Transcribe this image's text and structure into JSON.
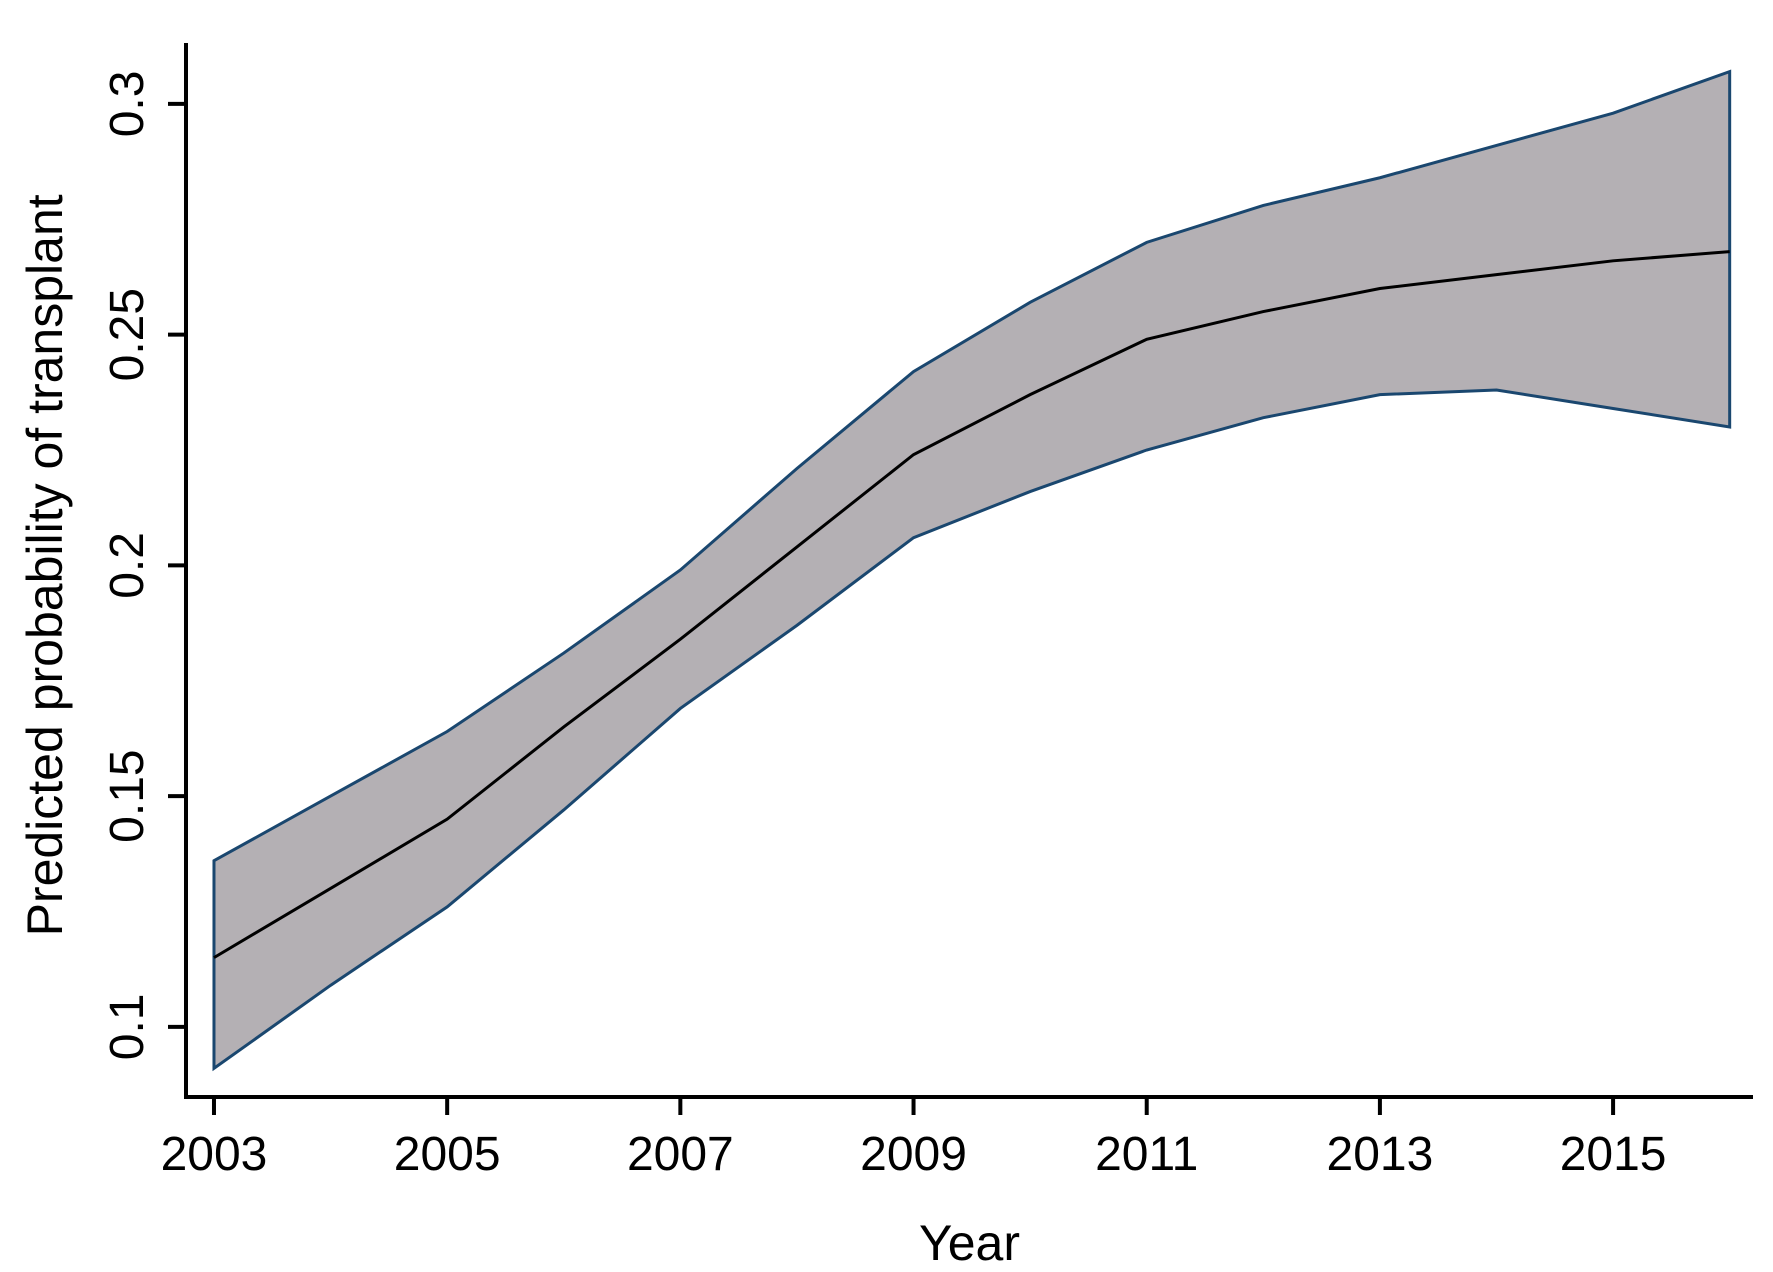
{
  "figure": {
    "background": "#ffffff",
    "text_color": "#000000"
  },
  "chart_data": {
    "type": "line",
    "title": "",
    "xlabel": "Year",
    "ylabel": "Predicted probability of transplant",
    "x": [
      2003,
      2004,
      2005,
      2006,
      2007,
      2008,
      2009,
      2010,
      2011,
      2012,
      2013,
      2014,
      2015,
      2016
    ],
    "series": [
      {
        "name": "predicted_probability",
        "values": [
          0.115,
          0.13,
          0.145,
          0.165,
          0.184,
          0.204,
          0.224,
          0.237,
          0.249,
          0.255,
          0.26,
          0.263,
          0.266,
          0.268
        ]
      },
      {
        "name": "ci_upper",
        "values": [
          0.136,
          0.15,
          0.164,
          0.181,
          0.199,
          0.221,
          0.242,
          0.257,
          0.27,
          0.278,
          0.284,
          0.291,
          0.298,
          0.307
        ]
      },
      {
        "name": "ci_lower",
        "values": [
          0.091,
          0.109,
          0.126,
          0.147,
          0.169,
          0.187,
          0.206,
          0.216,
          0.225,
          0.232,
          0.237,
          0.238,
          0.234,
          0.23
        ]
      }
    ],
    "x_ticks": [
      2003,
      2005,
      2007,
      2009,
      2011,
      2013,
      2015
    ],
    "y_ticks": [
      0.1,
      0.15,
      0.2,
      0.25,
      0.3
    ],
    "xlim": [
      2002.76,
      2016.2
    ],
    "ylim": [
      0.0848,
      0.3132
    ],
    "grid": false,
    "legend": false,
    "band_fill": "#b4b0b4",
    "band_edge": "#1a476f",
    "line_color": "#000000",
    "axis_color": "#000000"
  }
}
